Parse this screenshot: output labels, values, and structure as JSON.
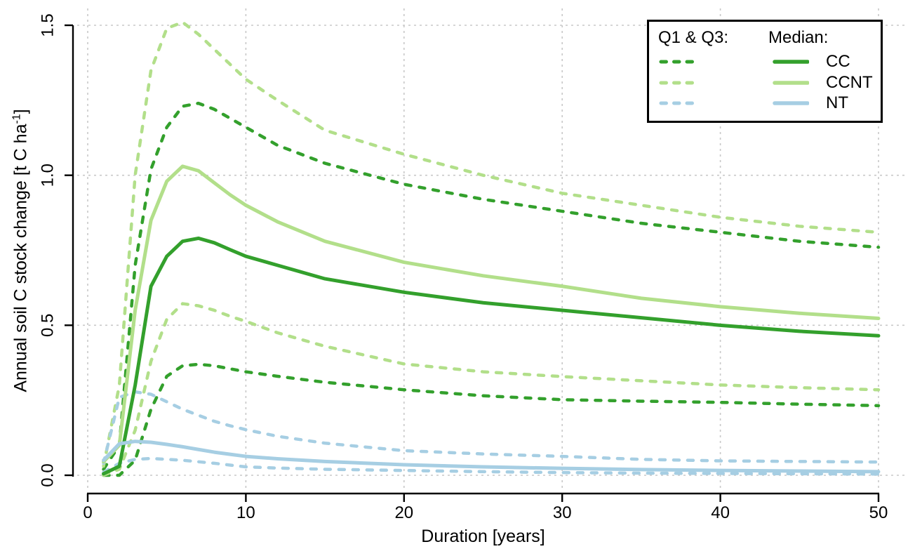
{
  "chart_data": {
    "type": "line",
    "title": "",
    "xlabel": "Duration [years]",
    "ylabel": "Annual soil C stock change [t C ha⁻¹]",
    "ylabel_parts": {
      "pre": "Annual soil C stock change [t C ha",
      "sup": "-1",
      "post": "]"
    },
    "xlim": [
      0,
      50
    ],
    "ylim": [
      0,
      1.5
    ],
    "xticks": [
      0,
      10,
      20,
      30,
      40,
      50
    ],
    "yticks": [
      {
        "value": 0.0,
        "label": "0.0"
      },
      {
        "value": 0.5,
        "label": "0.5"
      },
      {
        "value": 1.0,
        "label": "1.0"
      },
      {
        "value": 1.5,
        "label": "1.5"
      }
    ],
    "grid": true,
    "grid_color": "#c8c8c8",
    "legend_position": "top-right",
    "x": [
      1,
      2,
      3,
      4,
      5,
      6,
      7,
      8,
      9,
      10,
      12,
      15,
      20,
      25,
      30,
      35,
      40,
      45,
      50
    ],
    "series": [
      {
        "id": "cc-q3",
        "name": "CC Q3",
        "group": "Q1 & Q3",
        "color": "#33a02c",
        "style": "dashed",
        "values": [
          0.02,
          0.1,
          0.7,
          1.02,
          1.16,
          1.23,
          1.24,
          1.22,
          1.19,
          1.16,
          1.1,
          1.04,
          0.97,
          0.92,
          0.88,
          0.84,
          0.81,
          0.78,
          0.76
        ]
      },
      {
        "id": "ccnt-q3",
        "name": "CCNT Q3",
        "group": "Q1 & Q3",
        "color": "#b2df8a",
        "style": "dashed",
        "values": [
          0.03,
          0.3,
          1.0,
          1.35,
          1.49,
          1.51,
          1.47,
          1.42,
          1.37,
          1.32,
          1.25,
          1.15,
          1.07,
          1.0,
          0.94,
          0.9,
          0.86,
          0.83,
          0.81
        ]
      },
      {
        "id": "nt-q3",
        "name": "NT Q3",
        "group": "Q1 & Q3",
        "color": "#a6cee3",
        "style": "dashed",
        "values": [
          0.04,
          0.26,
          0.278,
          0.27,
          0.245,
          0.22,
          0.2,
          0.18,
          0.165,
          0.152,
          0.13,
          0.107,
          0.082,
          0.071,
          0.063,
          0.053,
          0.048,
          0.046,
          0.044
        ]
      },
      {
        "id": "cc-q1",
        "name": "CC Q1",
        "group": "Q1 & Q3",
        "color": "#33a02c",
        "style": "dashed",
        "values": [
          0.0,
          0.0,
          0.05,
          0.22,
          0.33,
          0.365,
          0.37,
          0.365,
          0.355,
          0.345,
          0.33,
          0.31,
          0.285,
          0.265,
          0.252,
          0.247,
          0.243,
          0.237,
          0.232
        ]
      },
      {
        "id": "ccnt-q1",
        "name": "CCNT Q1",
        "group": "Q1 & Q3",
        "color": "#b2df8a",
        "style": "dashed",
        "values": [
          0.0,
          0.02,
          0.15,
          0.38,
          0.52,
          0.572,
          0.565,
          0.55,
          0.53,
          0.513,
          0.475,
          0.43,
          0.371,
          0.345,
          0.329,
          0.315,
          0.301,
          0.292,
          0.285
        ]
      },
      {
        "id": "nt-q1",
        "name": "NT Q1",
        "group": "Q1 & Q3",
        "color": "#a6cee3",
        "style": "dashed",
        "values": [
          0.01,
          0.04,
          0.053,
          0.056,
          0.053,
          0.05,
          0.045,
          0.04,
          0.034,
          0.028,
          0.024,
          0.02,
          0.016,
          0.012,
          0.009,
          0.007,
          0.006,
          0.005,
          0.004
        ]
      },
      {
        "id": "cc-median",
        "name": "CC median",
        "group": "Median",
        "color": "#33a02c",
        "style": "solid",
        "values": [
          0.005,
          0.03,
          0.3,
          0.63,
          0.73,
          0.78,
          0.79,
          0.775,
          0.752,
          0.73,
          0.7,
          0.655,
          0.61,
          0.575,
          0.55,
          0.525,
          0.5,
          0.48,
          0.465
        ]
      },
      {
        "id": "ccnt-median",
        "name": "CCNT median",
        "group": "Median",
        "color": "#b2df8a",
        "style": "solid",
        "values": [
          0.045,
          0.1,
          0.55,
          0.85,
          0.98,
          1.03,
          1.015,
          0.975,
          0.935,
          0.9,
          0.845,
          0.78,
          0.71,
          0.665,
          0.63,
          0.59,
          0.562,
          0.54,
          0.523
        ]
      },
      {
        "id": "nt-median",
        "name": "NT median",
        "group": "Median",
        "color": "#a6cee3",
        "style": "solid",
        "values": [
          0.05,
          0.105,
          0.113,
          0.11,
          0.103,
          0.095,
          0.086,
          0.077,
          0.07,
          0.063,
          0.055,
          0.046,
          0.035,
          0.028,
          0.023,
          0.019,
          0.016,
          0.014,
          0.012
        ]
      }
    ]
  },
  "legend": {
    "q1q3_header": "Q1 & Q3:",
    "median_header": "Median:",
    "entries": [
      {
        "label": "CC",
        "color": "#33a02c"
      },
      {
        "label": "CCNT",
        "color": "#b2df8a"
      },
      {
        "label": "NT",
        "color": "#a6cee3"
      }
    ]
  },
  "colors": {
    "cc": "#33a02c",
    "ccnt": "#b2df8a",
    "nt": "#a6cee3",
    "grid": "#c8c8c8",
    "axis": "#000000",
    "background": "#ffffff"
  }
}
